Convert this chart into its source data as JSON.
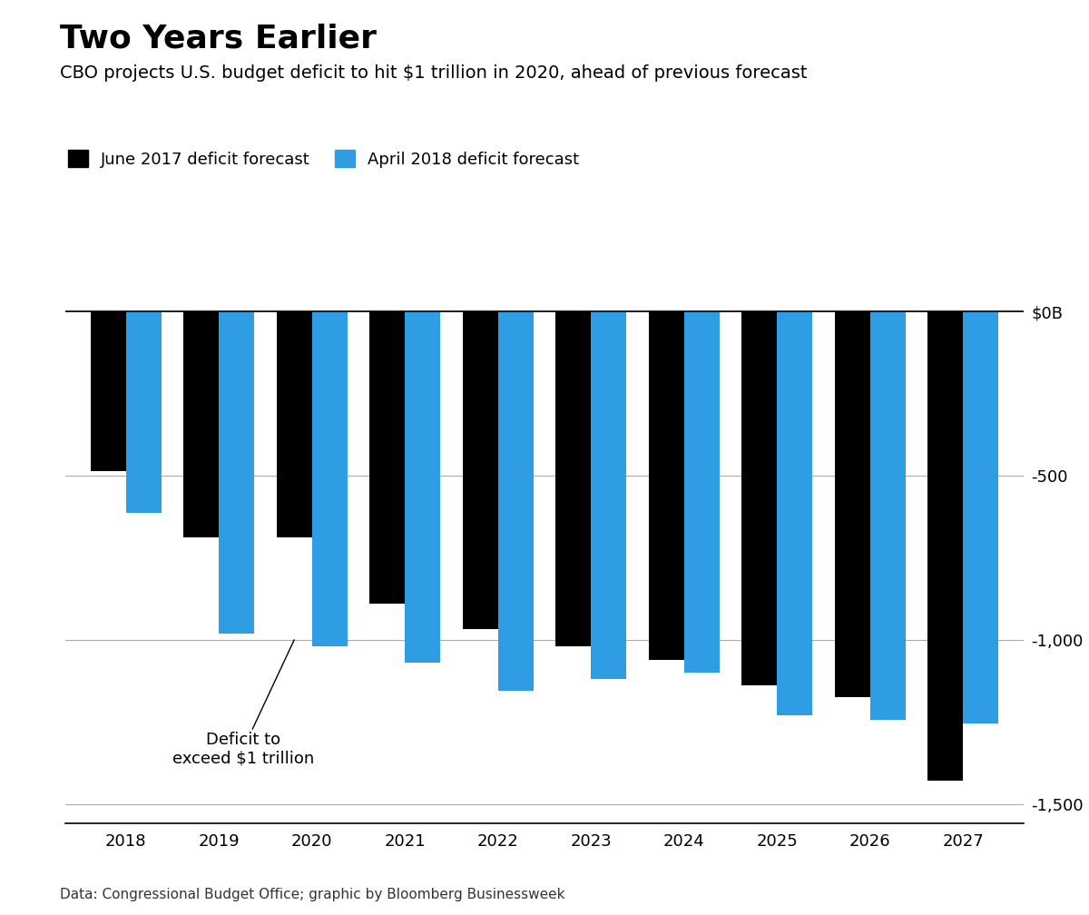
{
  "title": "Two Years Earlier",
  "subtitle": "CBO projects U.S. budget deficit to hit $1 trillion in 2020, ahead of previous forecast",
  "legend_labels": [
    "June 2017 deficit forecast",
    "April 2018 deficit forecast"
  ],
  "years": [
    2018,
    2019,
    2020,
    2021,
    2022,
    2023,
    2024,
    2025,
    2026,
    2027
  ],
  "june2017": [
    -487,
    -689,
    -689,
    -890,
    -967,
    -1021,
    -1060,
    -1140,
    -1175,
    -1430
  ],
  "april2018": [
    -614,
    -981,
    -1020,
    -1070,
    -1155,
    -1120,
    -1100,
    -1230,
    -1245,
    -1255
  ],
  "bar_color_black": "#000000",
  "bar_color_blue": "#2e9de4",
  "annotation_text": "Deficit to\nexceed $1 trillion",
  "annotation_year_idx": 2,
  "ylabel_ticks": [
    0,
    -500,
    -1000,
    -1500
  ],
  "ylabel_labels": [
    "$0B",
    "-500",
    "-1,000",
    "-1,500"
  ],
  "ylim": [
    -1560,
    30
  ],
  "source_text": "Data: Congressional Budget Office; graphic by Bloomberg Businessweek",
  "background_color": "#ffffff",
  "title_fontsize": 26,
  "subtitle_fontsize": 14,
  "legend_fontsize": 13,
  "tick_fontsize": 13,
  "annotation_fontsize": 13,
  "bar_width": 0.38,
  "grid_color": "#aaaaaa",
  "grid_linewidth": 0.8
}
